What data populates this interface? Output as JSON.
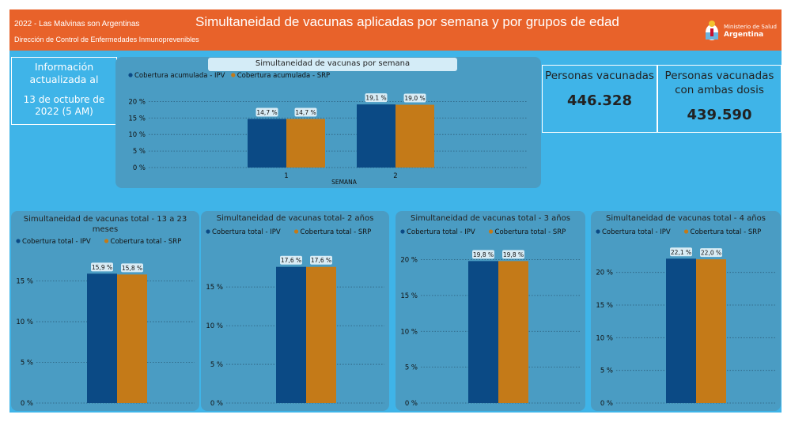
{
  "header": {
    "top_left_line1": "2022 - Las Malvinas son Argentinas",
    "top_left_line2": "Dirección de Control de Enfermedades Inmunoprevenibles",
    "title": "Simultaneidad de vacunas aplicadas por semana y por grupos de edad",
    "logo_ministry": "Ministerio de Salud",
    "logo_country": "Argentina"
  },
  "info": {
    "line1": "Información actualizada al",
    "line2": "13 de octubre de 2022 (5 AM)"
  },
  "stats": {
    "vaccinated_label": "Personas vacunadas",
    "vaccinated_value": "446.328",
    "both_label": "Personas vacunadas con ambas dosis",
    "both_value": "439.590"
  },
  "colors": {
    "ipv": "#0b4a85",
    "srp": "#c47a18",
    "orange_bar": "#e8622a",
    "background": "#3fb4e8",
    "card": "#4a9cc3"
  },
  "chart_data": [
    {
      "id": "weekly",
      "type": "bar",
      "title": "Simultaneidad de vacunas por semana",
      "xlabel": "SEMANA",
      "ylabel": "",
      "categories": [
        "1",
        "2"
      ],
      "series": [
        {
          "name": "Cobertura acumulada - IPV",
          "values": [
            14.7,
            19.1
          ],
          "labels": [
            "14,7 %",
            "19,1 %"
          ]
        },
        {
          "name": "Cobertura acumulada - SRP",
          "values": [
            14.7,
            19.0
          ],
          "labels": [
            "14,7 %",
            "19,0 %"
          ]
        }
      ],
      "ylim": [
        0,
        22
      ],
      "yticks": [
        0,
        5,
        10,
        15,
        20
      ],
      "ytick_labels": [
        "0 %",
        "5 %",
        "10 %",
        "15 %",
        "20 %"
      ],
      "grid": true,
      "legend": "top-left"
    },
    {
      "id": "age-13-23",
      "type": "bar",
      "title": "Simultaneidad de vacunas total - 13 a 23 meses",
      "categories": [
        ""
      ],
      "series": [
        {
          "name": "Cobertura total - IPV",
          "values": [
            15.9
          ],
          "labels": [
            "15,9 %"
          ]
        },
        {
          "name": "Cobertura total - SRP",
          "values": [
            15.8
          ],
          "labels": [
            "15,8 %"
          ]
        }
      ],
      "ylim": [
        0,
        17
      ],
      "yticks": [
        0,
        5,
        10,
        15
      ],
      "ytick_labels": [
        "0 %",
        "5 %",
        "10 %",
        "15 %"
      ],
      "grid": true,
      "legend": "top-left"
    },
    {
      "id": "age-2",
      "type": "bar",
      "title": "Simultaneidad de vacunas total- 2 años",
      "categories": [
        ""
      ],
      "series": [
        {
          "name": "Cobertura total - IPV",
          "values": [
            17.6
          ],
          "labels": [
            "17,6 %"
          ]
        },
        {
          "name": "Cobertura total - SRP",
          "values": [
            17.6
          ],
          "labels": [
            "17,6 %"
          ]
        }
      ],
      "ylim": [
        0,
        19
      ],
      "yticks": [
        0,
        5,
        10,
        15
      ],
      "ytick_labels": [
        "0 %",
        "5 %",
        "10 %",
        "15 %"
      ],
      "grid": true,
      "legend": "top-left"
    },
    {
      "id": "age-3",
      "type": "bar",
      "title": "Simultaneidad de vacunas total - 3 años",
      "categories": [
        ""
      ],
      "series": [
        {
          "name": "Cobertura total - IPV",
          "values": [
            19.8
          ],
          "labels": [
            "19,8 %"
          ]
        },
        {
          "name": "Cobertura total - SRP",
          "values": [
            19.8
          ],
          "labels": [
            "19,8 %"
          ]
        }
      ],
      "ylim": [
        0,
        20.5
      ],
      "yticks": [
        0,
        5,
        10,
        15,
        20
      ],
      "ytick_labels": [
        "0 %",
        "5 %",
        "10 %",
        "15 %",
        "20 %"
      ],
      "grid": true,
      "legend": "top-left"
    },
    {
      "id": "age-4",
      "type": "bar",
      "title": "Simultaneidad de vacunas total - 4 años",
      "categories": [
        ""
      ],
      "series": [
        {
          "name": "Cobertura total - IPV",
          "values": [
            22.1
          ],
          "labels": [
            "22,1 %"
          ]
        },
        {
          "name": "Cobertura total - SRP",
          "values": [
            22.0
          ],
          "labels": [
            "22,0 %"
          ]
        }
      ],
      "ylim": [
        0,
        22.5
      ],
      "yticks": [
        0,
        5,
        10,
        15,
        20
      ],
      "ytick_labels": [
        "0 %",
        "5 %",
        "10 %",
        "15 %",
        "20 %"
      ],
      "grid": true,
      "legend": "top-left"
    }
  ]
}
